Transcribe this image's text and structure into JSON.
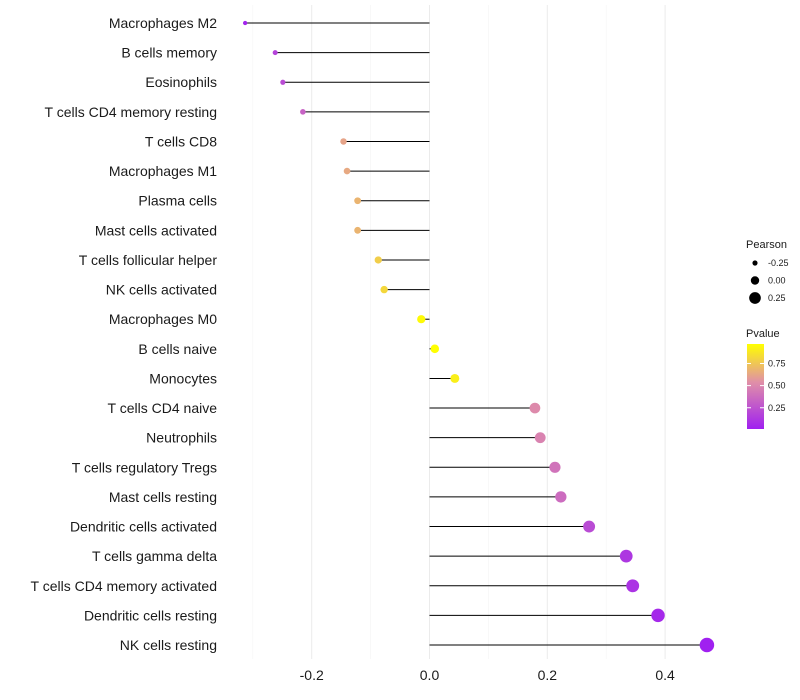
{
  "chart_data": {
    "type": "lollipop",
    "title": "",
    "xlabel": "",
    "ylabel": "",
    "xlim": [
      -0.3,
      0.47
    ],
    "x_ticks": [
      -0.2,
      0.0,
      0.2,
      0.4
    ],
    "x_tick_labels": [
      "-0.2",
      "0.0",
      "0.2",
      "0.4"
    ],
    "grid": true,
    "categories": [
      "Macrophages M2",
      "B cells memory",
      "Eosinophils",
      "T cells CD4 memory resting",
      "T cells CD8",
      "Macrophages M1",
      "Plasma cells",
      "Mast cells activated",
      "T cells follicular helper",
      "NK cells activated",
      "Macrophages M0",
      "B cells naive",
      "Monocytes",
      "T cells CD4 naive",
      "Neutrophils",
      "T cells regulatory  Tregs ",
      "Mast cells resting",
      "Dendritic cells activated",
      "T cells gamma delta",
      "T cells CD4 memory activated",
      "Dendritic cells resting",
      "NK cells resting"
    ],
    "pearson": [
      -0.313,
      -0.262,
      -0.249,
      -0.215,
      -0.146,
      -0.14,
      -0.122,
      -0.122,
      -0.087,
      -0.077,
      -0.014,
      0.009,
      0.043,
      0.179,
      0.188,
      0.213,
      0.223,
      0.271,
      0.334,
      0.345,
      0.388,
      0.471
    ],
    "pvalue": [
      0.03,
      0.16,
      0.2,
      0.3,
      0.58,
      0.6,
      0.65,
      0.65,
      0.76,
      0.8,
      0.95,
      0.97,
      0.9,
      0.47,
      0.44,
      0.37,
      0.34,
      0.2,
      0.11,
      0.09,
      0.05,
      0.01
    ],
    "size_legend": {
      "title": "Pearson",
      "entries": [
        {
          "label": "-0.25",
          "value": -0.25
        },
        {
          "label": "0.00",
          "value": 0.0
        },
        {
          "label": "0.25",
          "value": 0.25
        }
      ]
    },
    "color_legend": {
      "title": "Pvalue",
      "ticks": [
        {
          "label": "0.75",
          "value": 0.75
        },
        {
          "label": "0.50",
          "value": 0.5
        },
        {
          "label": "0.25",
          "value": 0.25
        }
      ],
      "range": [
        0.01,
        0.97
      ],
      "low_color": "#a020f0",
      "high_color": "#ffff00"
    }
  }
}
